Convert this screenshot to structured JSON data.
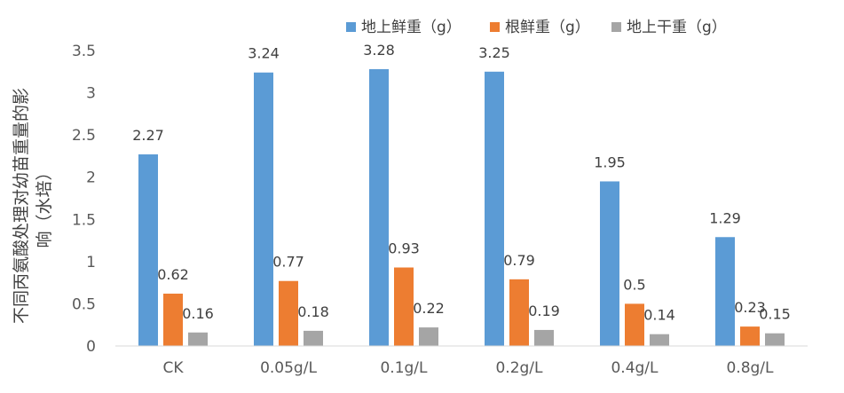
{
  "chart_data": {
    "type": "bar",
    "title": "",
    "xlabel": "",
    "ylabel_lines": [
      "不同丙氨酸处理对幼苗重量的影",
      "响（水培）"
    ],
    "categories": [
      "CK",
      "0.05g/L",
      "0.1g/L",
      "0.2g/L",
      "0.4g/L",
      "0.8g/L"
    ],
    "ylim": [
      0,
      3.5
    ],
    "yticks": [
      0,
      0.5,
      1,
      1.5,
      2,
      2.5,
      3,
      3.5
    ],
    "ytick_labels": [
      "0",
      "0.5",
      "1",
      "1.5",
      "2",
      "2.5",
      "3",
      "3.5"
    ],
    "grid": false,
    "legend_position": "top-right",
    "series": [
      {
        "name": "地上鲜重（g）",
        "color": "#5B9BD5",
        "values": [
          2.27,
          3.24,
          3.28,
          3.25,
          1.95,
          1.29
        ]
      },
      {
        "name": "根鲜重（g）",
        "color": "#ED7D31",
        "values": [
          0.62,
          0.77,
          0.93,
          0.79,
          0.5,
          0.23
        ]
      },
      {
        "name": "地上干重（g）",
        "color": "#A5A5A5",
        "values": [
          0.16,
          0.18,
          0.22,
          0.19,
          0.14,
          0.15
        ]
      }
    ]
  }
}
